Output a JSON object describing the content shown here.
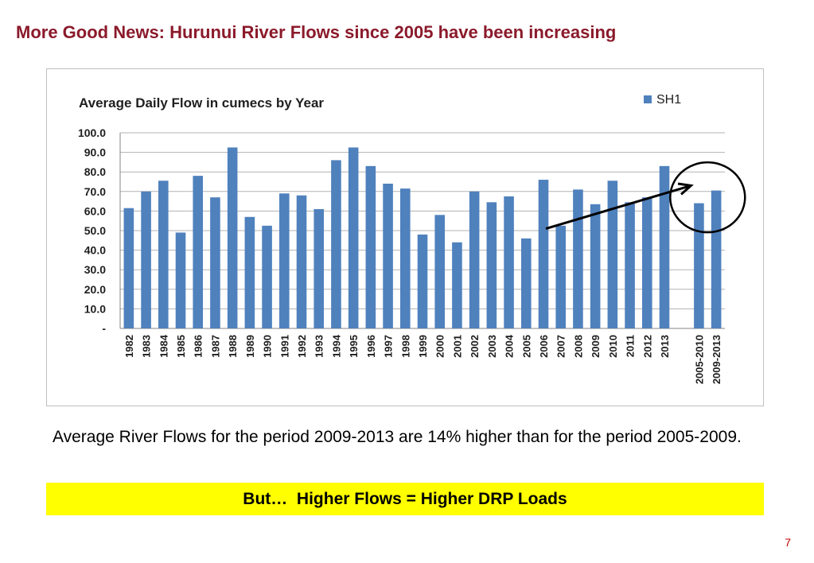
{
  "title": "More Good News: Hurunui River Flows since 2005 have been increasing",
  "caption": "Average River Flows for the period 2009-2013 are 14% higher than for the period 2005-2009.",
  "banner": "But…  Higher Flows = Higher DRP Loads",
  "page_number": "7",
  "colors": {
    "title": "#8b1a2b",
    "bar": "#4f81bd",
    "banner": "#ffff00",
    "page_number": "#c00000"
  },
  "chart_data": {
    "type": "bar",
    "title": "Average Daily Flow in cumecs by Year",
    "xlabel": "",
    "ylabel": "",
    "ylim": [
      0,
      100
    ],
    "yticks": [
      "-",
      "10.0",
      "20.0",
      "30.0",
      "40.0",
      "50.0",
      "60.0",
      "70.0",
      "80.0",
      "90.0",
      "100.0"
    ],
    "grid": true,
    "legend_position": "top-right",
    "categories": [
      "1982",
      "1983",
      "1984",
      "1985",
      "1986",
      "1987",
      "1988",
      "1989",
      "1990",
      "1991",
      "1992",
      "1993",
      "1994",
      "1995",
      "1996",
      "1997",
      "1998",
      "1999",
      "2000",
      "2001",
      "2002",
      "2003",
      "2004",
      "2005",
      "2006",
      "2007",
      "2008",
      "2009",
      "2010",
      "2011",
      "2012",
      "2013",
      "",
      "2005-2010",
      "2009-2013"
    ],
    "series": [
      {
        "name": "SH1",
        "color": "#4f81bd",
        "values": [
          61.5,
          70,
          75.5,
          49,
          78,
          67,
          92.5,
          57,
          52.5,
          69,
          68,
          61,
          86,
          92.5,
          83,
          74,
          71.5,
          48,
          58,
          44,
          70,
          64.5,
          67.5,
          46,
          76,
          52.5,
          71,
          63.5,
          75.5,
          64.5,
          67,
          83,
          null,
          64,
          70.5
        ]
      }
    ],
    "annotations": [
      {
        "type": "arrow",
        "from_category": "2006",
        "from_value": 51,
        "to_category": "2005-2010",
        "to_value": 73
      },
      {
        "type": "circle",
        "around": [
          "2005-2010",
          "2009-2013"
        ]
      }
    ]
  }
}
